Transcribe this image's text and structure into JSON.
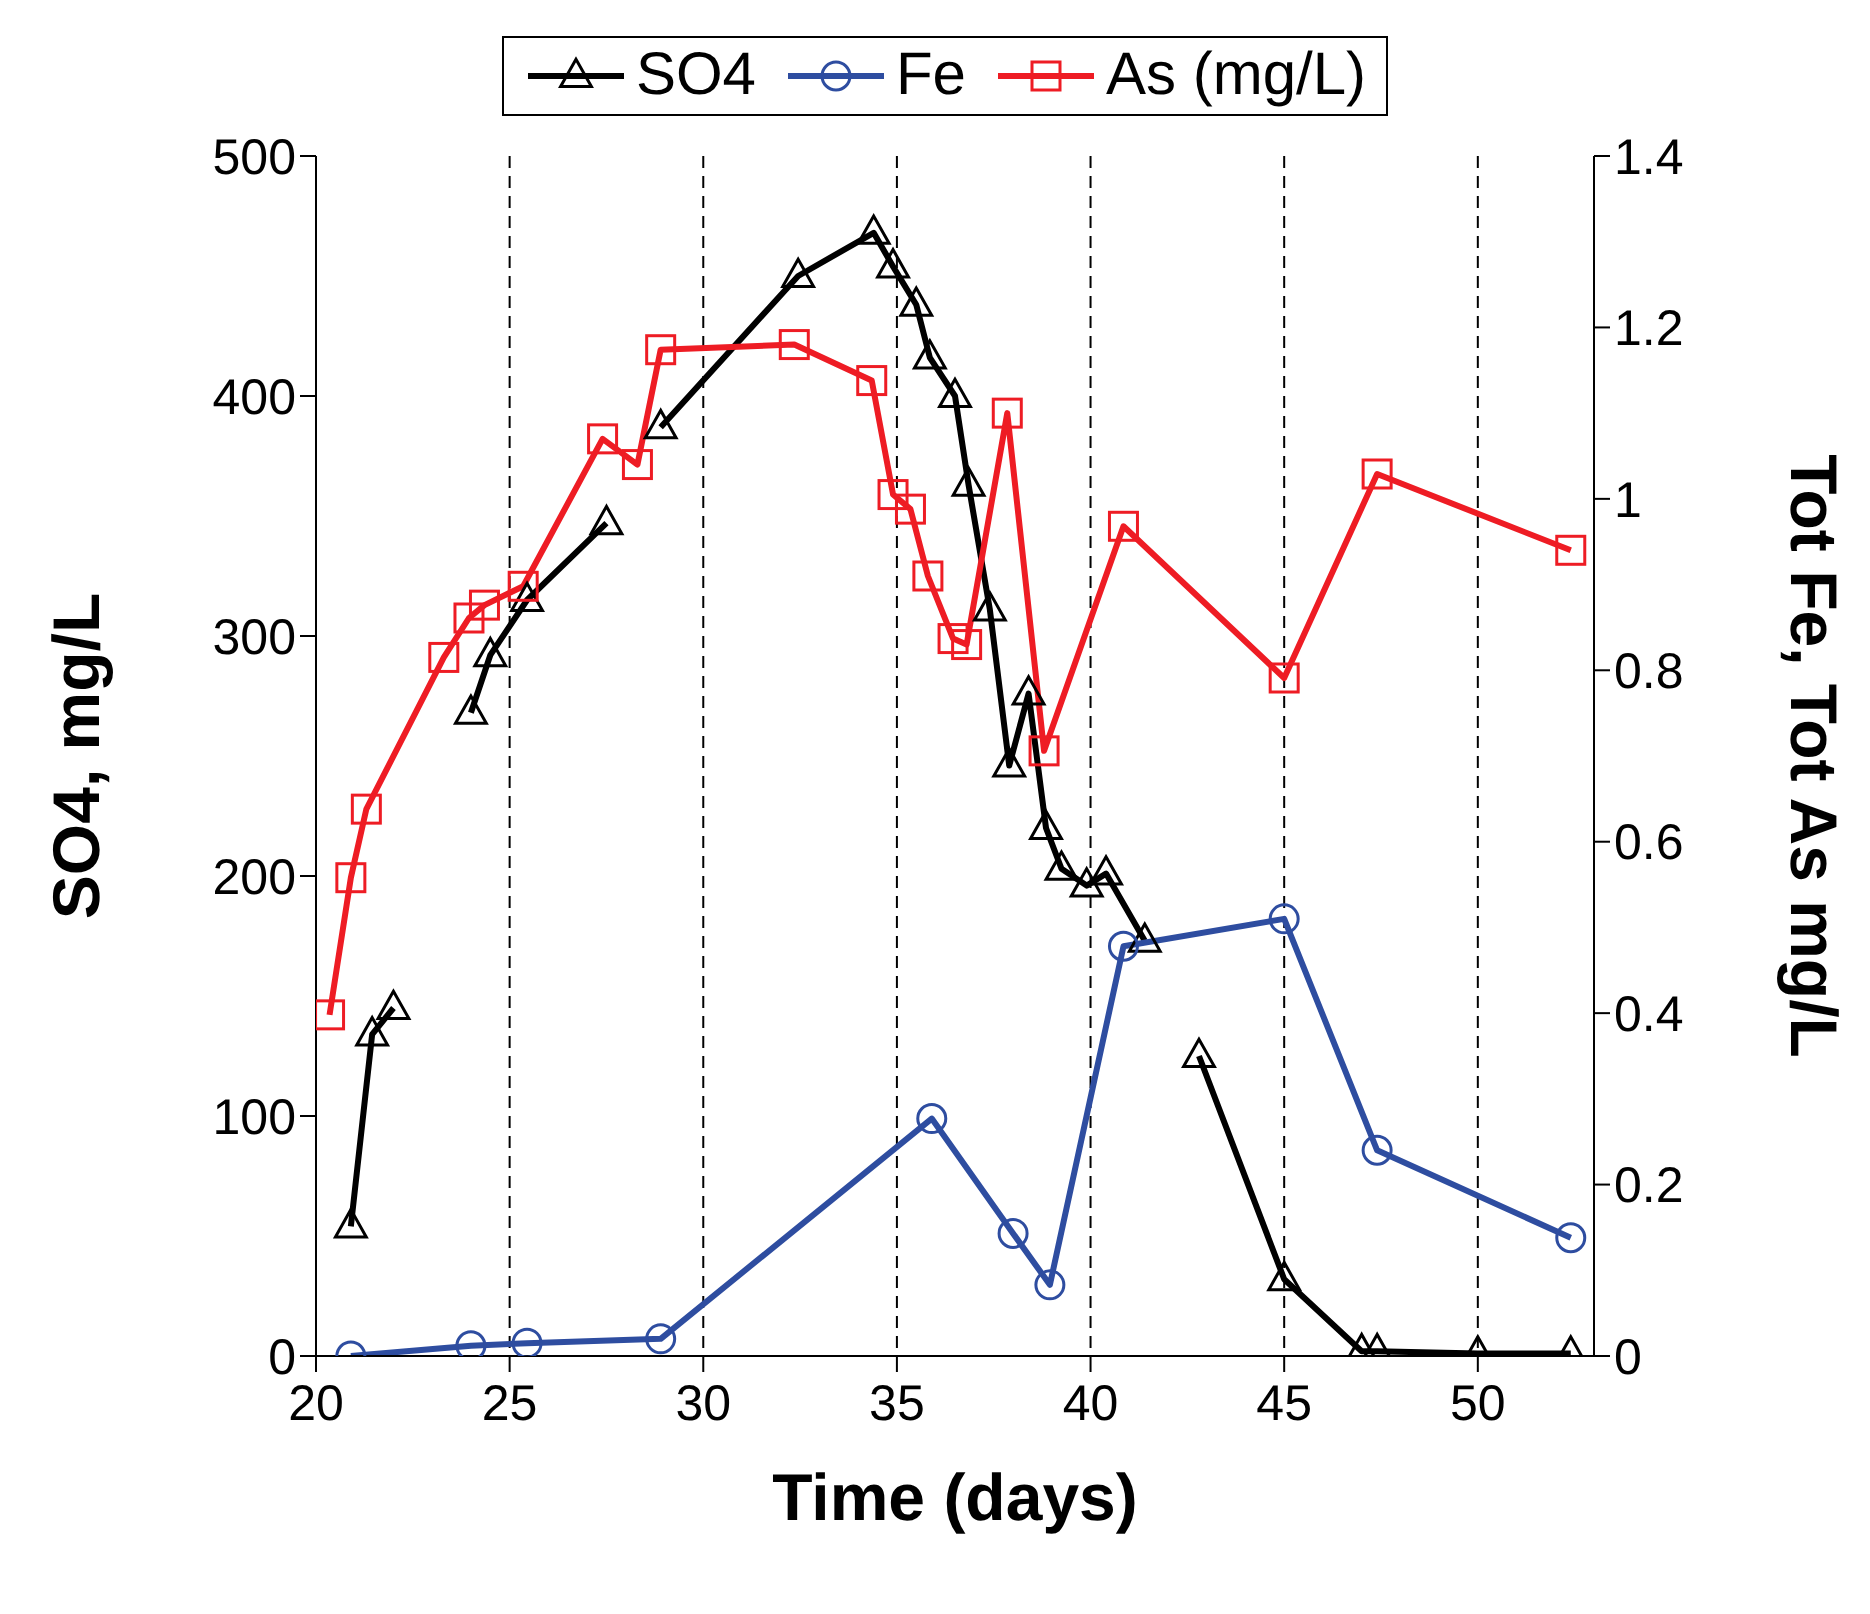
{
  "chart_data": {
    "type": "line",
    "xlabel": "Time (days)",
    "ylabel": "SO4, mg/L",
    "y2label": "Tot Fe, Tot As mg/L",
    "xlim": [
      20,
      53
    ],
    "xticks": [
      20,
      25,
      30,
      35,
      40,
      45,
      50
    ],
    "ylim": [
      0,
      500
    ],
    "yticks": [
      0,
      100,
      200,
      300,
      400,
      500
    ],
    "y2lim": [
      0,
      1.4
    ],
    "y2ticks": [
      0,
      0.2,
      0.4,
      0.6,
      0.8,
      1,
      1.2,
      1.4
    ],
    "grid": "x",
    "legend": "top",
    "line_style": "solid",
    "series": [
      {
        "name": "SO4",
        "color": "#000000",
        "marker": "triangle",
        "x": [
          20.9,
          21.45,
          22,
          23,
          24,
          24.5,
          25.45,
          27.5,
          28.2,
          28.9,
          32.45,
          34.4,
          34.9,
          35.5,
          35.85,
          36.5,
          36.85,
          37.4,
          37.9,
          38.4,
          38.85,
          39.25,
          39.9,
          40.4,
          41.4,
          42.1,
          42.8,
          45,
          47,
          47.4,
          50,
          52.4
        ],
        "values": [
          54,
          134,
          145,
          null,
          268,
          292,
          315,
          347,
          null,
          387,
          450,
          468,
          454,
          438,
          416,
          400,
          363,
          311,
          246,
          276,
          220,
          203,
          196,
          201,
          173,
          null,
          125,
          32,
          2,
          2,
          1,
          1
        ]
      },
      {
        "name": "Fe",
        "color": "#2e4da0",
        "marker": "circle",
        "axis": "y2",
        "x": [
          20.9,
          24,
          25.45,
          28.9,
          35.9,
          38,
          38.95,
          40.85,
          45,
          47.4,
          52.4
        ],
        "values": [
          0,
          0.012,
          0.015,
          0.02,
          0.277,
          0.143,
          0.083,
          0.478,
          0.51,
          0.24,
          0.138
        ]
      },
      {
        "name": "As (mg/L)",
        "color": "#ee1c24",
        "marker": "square",
        "axis": "y2",
        "x": [
          20.35,
          20.9,
          21.3,
          23.3,
          23.95,
          24.35,
          25.35,
          27.4,
          28.3,
          28.9,
          32.35,
          34.35,
          34.9,
          35.35,
          35.8,
          36.45,
          36.8,
          37.85,
          38.8,
          40.85,
          45,
          47.4,
          52.4
        ],
        "values": [
          0.398,
          0.558,
          0.638,
          0.815,
          0.861,
          0.876,
          0.898,
          1.07,
          1.04,
          1.174,
          1.18,
          1.138,
          1.005,
          0.988,
          0.91,
          0.837,
          0.83,
          1.1,
          0.706,
          0.968,
          0.791,
          1.029,
          0.94
        ]
      }
    ]
  }
}
